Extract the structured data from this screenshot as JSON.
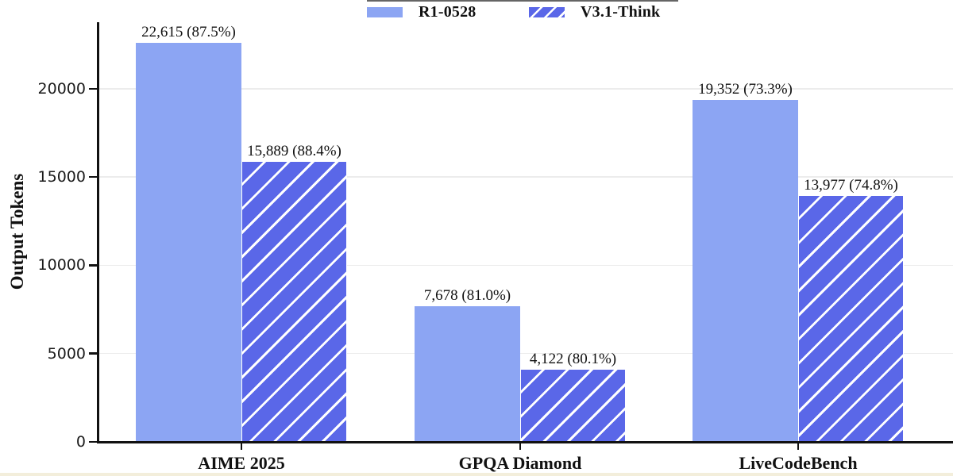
{
  "legend": {
    "items": [
      {
        "label": "R1-0528",
        "style": "solid"
      },
      {
        "label": "V3.1-Think",
        "style": "hatched"
      }
    ]
  },
  "colors": {
    "solid_bar": "#8CA5F3",
    "hatched_bar": "#5A67E8",
    "hatch_stripe": "#FFFFFF",
    "gridline": "#ECECEC",
    "axis": "#111111",
    "bottom_strip": "#F3EEDB"
  },
  "axes": {
    "y_label": "Output Tokens",
    "y_ticks": [
      {
        "label": "0",
        "value": 0
      },
      {
        "label": "5000",
        "value": 5000
      },
      {
        "label": "10000",
        "value": 10000
      },
      {
        "label": "15000",
        "value": 15000
      },
      {
        "label": "20000",
        "value": 20000
      }
    ]
  },
  "chart_data": {
    "type": "bar",
    "title": "",
    "xlabel": "",
    "ylabel": "Output Tokens",
    "ylim": [
      0,
      23500
    ],
    "grid": true,
    "legend_position": "top-center",
    "categories": [
      "AIME 2025",
      "GPQA Diamond",
      "LiveCodeBench"
    ],
    "series": [
      {
        "name": "R1-0528",
        "style": "solid",
        "values": [
          22615,
          7678,
          19352
        ],
        "labels": [
          "22,615 (87.5%)",
          "7,678 (81.0%)",
          "19,352 (73.3%)"
        ]
      },
      {
        "name": "V3.1-Think",
        "style": "hatched",
        "values": [
          15889,
          4122,
          13977
        ],
        "labels": [
          "15,889 (88.4%)",
          "4,122 (80.1%)",
          "13,977 (74.8%)"
        ]
      }
    ]
  }
}
